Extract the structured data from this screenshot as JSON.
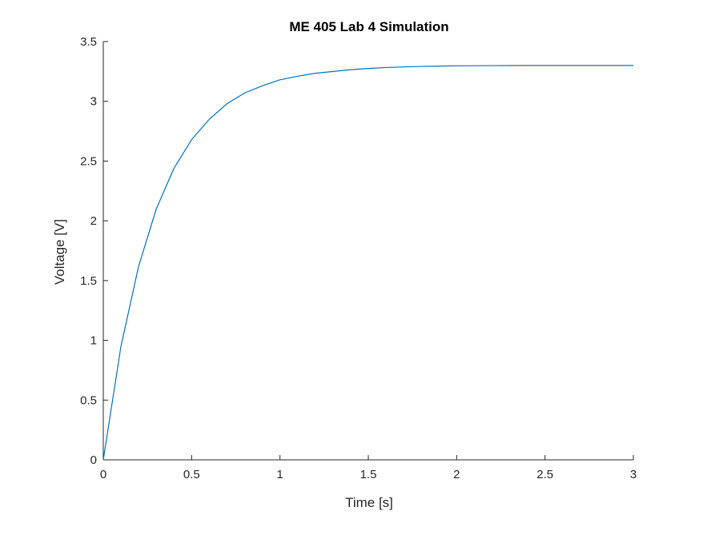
{
  "chart_data": {
    "type": "line",
    "title": "ME 405 Lab 4 Simulation",
    "xlabel": "Time [s]",
    "ylabel": "Voltage [V]",
    "xlim": [
      0,
      3
    ],
    "ylim": [
      0,
      3.5
    ],
    "x_ticks": [
      "0",
      "0.5",
      "1",
      "1.5",
      "2",
      "2.5",
      "3"
    ],
    "y_ticks": [
      "0",
      "0.5",
      "1",
      "1.5",
      "2",
      "2.5",
      "3",
      "3.5"
    ],
    "grid": false,
    "legend": "none",
    "series": [
      {
        "color": "#0072BD",
        "x": [
          0,
          0.1,
          0.2,
          0.3,
          0.4,
          0.5,
          0.6,
          0.7,
          0.8,
          0.9,
          1.0,
          1.1,
          1.2,
          1.3,
          1.4,
          1.5,
          1.6,
          1.7,
          1.8,
          1.9,
          2.0,
          2.2,
          2.4,
          2.6,
          2.8,
          3.0
        ],
        "y": [
          0,
          0.95,
          1.62,
          2.1,
          2.44,
          2.68,
          2.85,
          2.98,
          3.07,
          3.13,
          3.18,
          3.21,
          3.235,
          3.25,
          3.265,
          3.275,
          3.283,
          3.288,
          3.292,
          3.295,
          3.297,
          3.299,
          3.3,
          3.3,
          3.3,
          3.3
        ]
      }
    ]
  }
}
